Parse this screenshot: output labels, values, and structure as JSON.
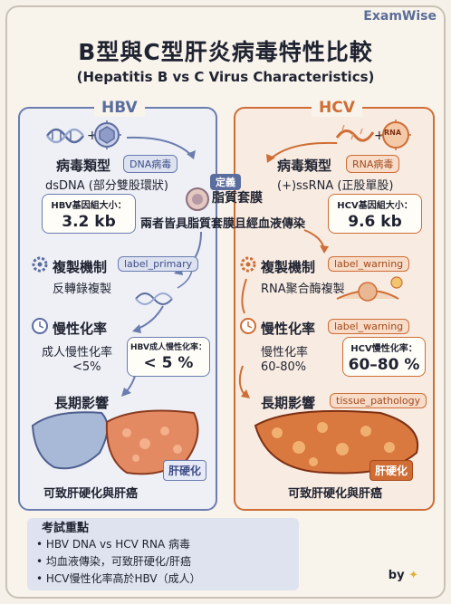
{
  "brand": "ExamWise",
  "title": "B型與C型肝炎病毒特性比較",
  "subtitle": "(Hepatitis B vs C Virus Characteristics)",
  "hbv": {
    "header": "HBV",
    "virus_type_title": "病毒類型",
    "virus_type_tag": "DNA病毒",
    "genome_desc": "dsDNA (部分雙股環狀)",
    "genome_size_label": "HBV基因組大小：",
    "genome_size_value": "3.2 kb",
    "replication_title": "複製機制",
    "replication_tag": "label_primary",
    "replication_desc": "反轉錄複製",
    "chronic_title": "慢性化率",
    "chronic_label": "成人慢性化率",
    "chronic_value_text": "<5%",
    "chronic_box_label": "HBV成人慢性化率：",
    "chronic_box_value": "< 5 %",
    "longterm_title": "長期影響",
    "cirrhosis_badge": "肝硬化",
    "outcome": "可致肝硬化與肝癌"
  },
  "hcv": {
    "header": "HCV",
    "virus_type_title": "病毒類型",
    "virus_type_tag": "RNA病毒",
    "genome_desc": "(+)ssRNA (正股單股)",
    "genome_size_label": "HCV基因組大小：",
    "genome_size_value": "9.6 kb",
    "rna_icon_label": "RNA",
    "replication_title": "複製機制",
    "replication_tag": "label_warning",
    "replication_desc": "RNA聚合酶複製",
    "chronic_title": "慢性化率",
    "chronic_tag": "label_warning",
    "chronic_label": "慢性化率",
    "chronic_value_text": "60-80%",
    "chronic_box_label": "HCV慢性化率：",
    "chronic_box_value": "60–80 %",
    "longterm_title": "長期影響",
    "longterm_tag": "tissue_pathology",
    "cirrhosis_badge": "肝硬化",
    "outcome": "可致肝硬化與肝癌"
  },
  "shared": {
    "tag": "定義",
    "title": "脂質套膜",
    "desc": "兩者皆具脂質套膜且經血液傳染"
  },
  "summary": {
    "title": "考試重點",
    "items": [
      "HBV DNA vs HCV RNA 病毒",
      "均血液傳染，可致肝硬化/肝癌",
      "HCV慢性化率高於HBV（成人）"
    ]
  },
  "byline": "by",
  "colors": {
    "hbv_accent": "#6b7cae",
    "hcv_accent": "#cf6d35",
    "background": "#f6f1e8"
  }
}
